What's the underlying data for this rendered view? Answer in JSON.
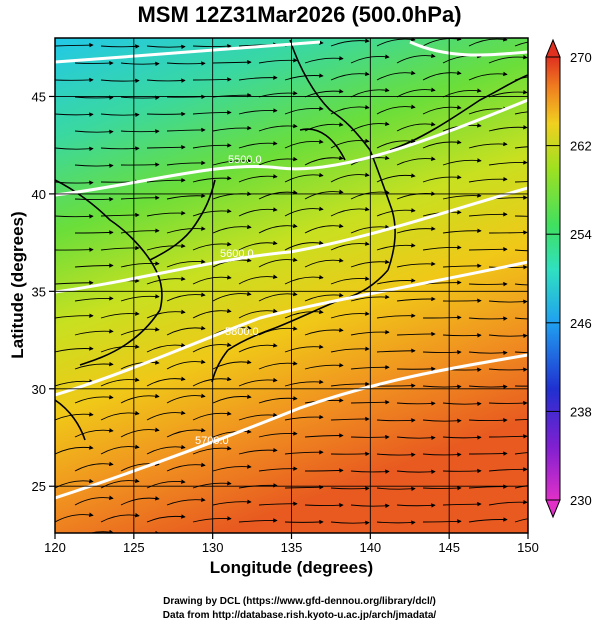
{
  "title": "MSM 12Z31Mar2026 (500.0hPa)",
  "x_axis": {
    "label": "Longitude (degrees)",
    "ticks": [
      "120",
      "125",
      "130",
      "135",
      "140",
      "145",
      "150"
    ]
  },
  "y_axis": {
    "label": "Latitude  (degrees)",
    "ticks": [
      "25",
      "30",
      "35",
      "40",
      "45"
    ]
  },
  "colorbar": {
    "ticks": [
      "270",
      "262",
      "254",
      "246",
      "238",
      "230"
    ],
    "min": 230,
    "max": 270
  },
  "contour_labels": [
    "5700.0",
    "5800.0",
    "5600.0",
    "5500.0"
  ],
  "credits": [
    "Drawing by DCL (https://www.gfd-dennou.org/library/dcl/)",
    "Data from http://database.rish.kyoto-u.ac.jp/arch/jmadata/"
  ]
}
